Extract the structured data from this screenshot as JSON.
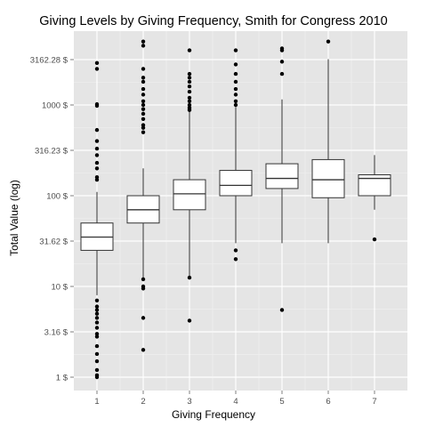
{
  "chart_data": {
    "type": "box",
    "title": "Giving Levels by Giving Frequency, Smith for Congress 2010",
    "xlabel": "Giving Frequency",
    "ylabel": "Total Value (log)",
    "y_scale": "log10",
    "ylim": [
      0.8,
      6000
    ],
    "grid": true,
    "categories": [
      "1",
      "2",
      "3",
      "4",
      "5",
      "6",
      "7"
    ],
    "y_ticks": [
      {
        "value": 1,
        "label": "1 $"
      },
      {
        "value": 3.16,
        "label": "3.16 $"
      },
      {
        "value": 10,
        "label": "10 $"
      },
      {
        "value": 31.62,
        "label": "31.62 $"
      },
      {
        "value": 100,
        "label": "100 $"
      },
      {
        "value": 316.23,
        "label": "316.23 $"
      },
      {
        "value": 1000,
        "label": "1000 $"
      },
      {
        "value": 3162.28,
        "label": "3162.28 $"
      }
    ],
    "boxes": [
      {
        "category": "1",
        "q1": 25,
        "median": 35,
        "q3": 50,
        "whisker_low": 8,
        "whisker_high": 110,
        "outliers": [
          1.0,
          1.05,
          1.2,
          1.5,
          1.8,
          2.2,
          2.8,
          3.0,
          3.5,
          4.0,
          4.5,
          5.0,
          5.5,
          6.0,
          7.0,
          150,
          160,
          200,
          230,
          280,
          330,
          400,
          530,
          980,
          1020,
          2500,
          2900
        ]
      },
      {
        "category": "2",
        "q1": 50,
        "median": 70,
        "q3": 100,
        "whisker_low": 12,
        "whisker_high": 200,
        "outliers": [
          2,
          4.5,
          9.5,
          10,
          12,
          500,
          560,
          600,
          700,
          800,
          900,
          1000,
          1100,
          1300,
          1500,
          1800,
          2000,
          2500,
          4500,
          5000
        ]
      },
      {
        "category": "3",
        "q1": 70,
        "median": 105,
        "q3": 150,
        "whisker_low": 12,
        "whisker_high": 850,
        "outliers": [
          4.2,
          12.5,
          880,
          930,
          1000,
          1100,
          1200,
          1400,
          1600,
          1800,
          2000,
          2200,
          4000
        ]
      },
      {
        "category": "4",
        "q1": 100,
        "median": 130,
        "q3": 190,
        "whisker_low": 30,
        "whisker_high": 950,
        "outliers": [
          20,
          25,
          1000,
          1100,
          1300,
          1500,
          1800,
          2200,
          2800,
          4000
        ]
      },
      {
        "category": "5",
        "q1": 120,
        "median": 155,
        "q3": 225,
        "whisker_low": 30,
        "whisker_high": 1150,
        "outliers": [
          5.5,
          2200,
          3000,
          4000,
          4200
        ]
      },
      {
        "category": "6",
        "q1": 95,
        "median": 150,
        "q3": 250,
        "whisker_low": 30,
        "whisker_high": 3200,
        "outliers": [
          5000
        ]
      },
      {
        "category": "7",
        "q1": 100,
        "median": 155,
        "q3": 170,
        "whisker_low": 70,
        "whisker_high": 280,
        "outliers": [
          33
        ]
      }
    ]
  }
}
